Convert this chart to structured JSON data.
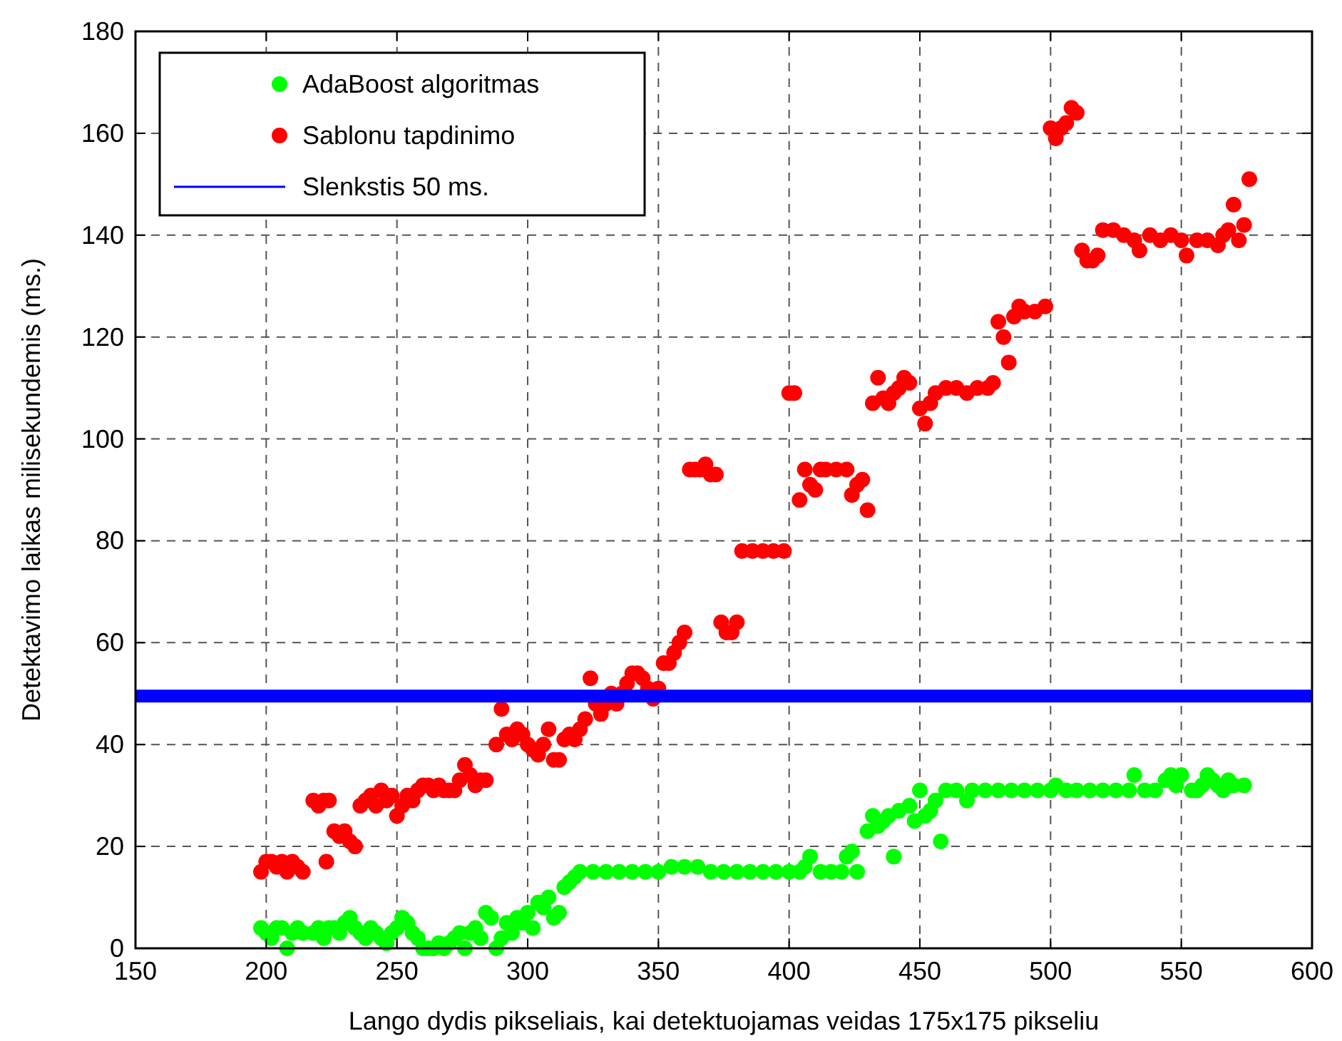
{
  "chart_data": {
    "type": "scatter",
    "xlabel": "Lango dydis pikseliais, kai detektuojamas veidas 175x175 pikseliu",
    "ylabel": "Detektavimo laikas milisekundemis (ms.)",
    "xlim": [
      150,
      600
    ],
    "xticks": [
      150,
      200,
      250,
      300,
      350,
      400,
      450,
      500,
      550,
      600
    ],
    "ylim": [
      0,
      180
    ],
    "yticks": [
      0,
      20,
      40,
      60,
      80,
      100,
      120,
      140,
      160,
      180
    ],
    "grid": true,
    "legend": "top left",
    "marker": "circle",
    "series": [
      {
        "name": "AdaBoost algoritmas",
        "color": "#00ff00",
        "x": [
          198,
          200,
          202,
          204,
          206,
          208,
          210,
          212,
          214,
          218,
          220,
          222,
          224,
          226,
          228,
          230,
          232,
          234,
          236,
          238,
          240,
          242,
          244,
          246,
          248,
          250,
          252,
          254,
          256,
          258,
          260,
          262,
          264,
          266,
          268,
          270,
          272,
          274,
          276,
          278,
          280,
          282,
          284,
          286,
          288,
          290,
          292,
          294,
          296,
          298,
          300,
          302,
          304,
          306,
          308,
          310,
          312,
          314,
          316,
          318,
          320,
          325,
          330,
          335,
          340,
          345,
          350,
          355,
          360,
          365,
          370,
          375,
          380,
          385,
          390,
          395,
          400,
          404,
          406,
          408,
          412,
          416,
          420,
          422,
          424,
          426,
          430,
          432,
          434,
          436,
          438,
          440,
          442,
          446,
          448,
          450,
          452,
          454,
          456,
          458,
          460,
          464,
          468,
          470,
          475,
          480,
          485,
          490,
          495,
          500,
          502,
          506,
          510,
          515,
          520,
          525,
          530,
          532,
          536,
          540,
          544,
          546,
          548,
          550,
          554,
          556,
          558,
          560,
          562,
          564,
          566,
          568,
          570,
          574
        ],
        "values": [
          4,
          3,
          2,
          4,
          4,
          0,
          3,
          4,
          3,
          3,
          4,
          2,
          4,
          4,
          3,
          5,
          6,
          4,
          3,
          2,
          4,
          3,
          2,
          1,
          3,
          4,
          6,
          5,
          3,
          2,
          0,
          0,
          0,
          1,
          0,
          1,
          2,
          3,
          0,
          3,
          4,
          2,
          7,
          6,
          0,
          2,
          5,
          3,
          6,
          5,
          7,
          4,
          9,
          8,
          10,
          6,
          7,
          12,
          13,
          14,
          15,
          15,
          15,
          15,
          15,
          15,
          15,
          16,
          16,
          16,
          15,
          15,
          15,
          15,
          15,
          15,
          15,
          15,
          16,
          18,
          15,
          15,
          15,
          18,
          19,
          15,
          23,
          26,
          24,
          25,
          26,
          18,
          27,
          28,
          25,
          31,
          26,
          27,
          29,
          21,
          31,
          31,
          29,
          31,
          31,
          31,
          31,
          31,
          31,
          31,
          32,
          31,
          31,
          31,
          31,
          31,
          31,
          34,
          31,
          31,
          33,
          34,
          32,
          34,
          31,
          31,
          32,
          34,
          33,
          32,
          31,
          33,
          32,
          32
        ]
      },
      {
        "name": "Sablonu tapdinimo",
        "color": "#ff0000",
        "x": [
          198,
          200,
          202,
          204,
          206,
          208,
          210,
          212,
          214,
          218,
          220,
          222,
          224,
          223,
          226,
          228,
          230,
          232,
          234,
          236,
          238,
          240,
          242,
          244,
          246,
          248,
          250,
          252,
          254,
          256,
          258,
          260,
          262,
          264,
          266,
          268,
          270,
          272,
          274,
          276,
          278,
          280,
          282,
          284,
          288,
          290,
          292,
          294,
          296,
          298,
          300,
          302,
          304,
          306,
          308,
          310,
          312,
          314,
          316,
          318,
          320,
          322,
          324,
          326,
          328,
          330,
          332,
          334,
          336,
          338,
          340,
          342,
          344,
          346,
          348,
          350,
          352,
          354,
          356,
          358,
          360,
          362,
          364,
          366,
          368,
          370,
          372,
          374,
          376,
          378,
          380,
          382,
          386,
          390,
          394,
          398,
          400,
          402,
          404,
          406,
          408,
          410,
          412,
          414,
          418,
          422,
          424,
          426,
          428,
          430,
          432,
          434,
          436,
          438,
          440,
          442,
          444,
          446,
          450,
          452,
          454,
          456,
          460,
          464,
          468,
          472,
          476,
          478,
          480,
          482,
          484,
          486,
          488,
          490,
          494,
          498,
          500,
          502,
          504,
          506,
          508,
          510,
          512,
          514,
          516,
          518,
          520,
          524,
          528,
          532,
          534,
          538,
          542,
          546,
          550,
          552,
          556,
          560,
          564,
          566,
          568,
          570,
          572,
          574,
          576
        ],
        "values": [
          15,
          17,
          17,
          16,
          17,
          15,
          17,
          16,
          15,
          29,
          28,
          29,
          29,
          17,
          23,
          22,
          23,
          21,
          20,
          28,
          29,
          30,
          28,
          31,
          29,
          30,
          26,
          28,
          30,
          29,
          31,
          32,
          32,
          31,
          32,
          31,
          31,
          31,
          33,
          36,
          34,
          32,
          33,
          33,
          40,
          47,
          42,
          41,
          43,
          42,
          40,
          39,
          38,
          40,
          43,
          37,
          37,
          41,
          42,
          41,
          43,
          45,
          53,
          48,
          46,
          48,
          50,
          48,
          50,
          52,
          54,
          54,
          53,
          51,
          49,
          51,
          56,
          56,
          58,
          60,
          62,
          94,
          94,
          94,
          95,
          93,
          93,
          64,
          62,
          62,
          64,
          78,
          78,
          78,
          78,
          78,
          109,
          109,
          88,
          94,
          91,
          90,
          94,
          94,
          94,
          94,
          89,
          91,
          92,
          86,
          107,
          112,
          108,
          107,
          109,
          110,
          112,
          111,
          106,
          103,
          107,
          109,
          110,
          110,
          109,
          110,
          110,
          111,
          123,
          120,
          115,
          124,
          126,
          125,
          125,
          126,
          161,
          159,
          161,
          162,
          165,
          164,
          137,
          135,
          135,
          136,
          141,
          141,
          140,
          139,
          137,
          140,
          139,
          140,
          139,
          136,
          139,
          139,
          138,
          140,
          141,
          146,
          139,
          142,
          151
        ]
      },
      {
        "name": "Slenkstis 50 ms.",
        "type": "line",
        "color": "#0000ff",
        "marker": "none",
        "x": [
          150,
          600
        ],
        "values": [
          49.5,
          49.5
        ]
      }
    ]
  }
}
